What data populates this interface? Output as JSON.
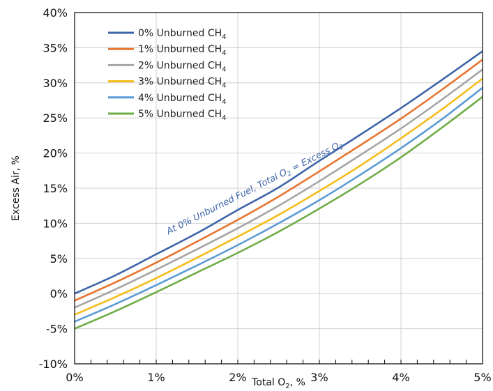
{
  "chart_data": {
    "type": "line",
    "xlabel": {
      "base": "Total O",
      "sub": "2",
      "rest": ", %"
    },
    "ylabel": "Excess Air, %",
    "xlim": [
      0,
      5
    ],
    "ylim": [
      -10,
      40
    ],
    "xticks": [
      0,
      1,
      2,
      3,
      4,
      5
    ],
    "xtick_labels": [
      "0%",
      "1%",
      "2%",
      "3%",
      "4%",
      "5%"
    ],
    "yticks": [
      -10,
      -5,
      0,
      5,
      10,
      15,
      20,
      25,
      30,
      35,
      40
    ],
    "ytick_labels": [
      "-10%",
      "-5%",
      "0%",
      "5%",
      "10%",
      "15%",
      "20%",
      "25%",
      "30%",
      "35%",
      "40%"
    ],
    "grid": true,
    "legend": "top-left",
    "x": [
      0,
      0.5,
      1,
      1.5,
      2,
      2.5,
      3,
      3.5,
      4,
      4.5,
      5
    ],
    "series": [
      {
        "name": {
          "base": "0% Unburned CH",
          "sub": "4"
        },
        "color": "#3d64a8",
        "values": [
          0,
          2.6,
          5.6,
          8.6,
          11.9,
          15.1,
          18.9,
          22.6,
          26.4,
          30.4,
          34.5
        ]
      },
      {
        "name": {
          "base": "1% Unburned CH",
          "sub": "4"
        },
        "color": "#e8742e",
        "values": [
          -1.0,
          1.6,
          4.4,
          7.4,
          10.5,
          13.8,
          17.4,
          21.1,
          24.9,
          29.0,
          33.3
        ]
      },
      {
        "name": {
          "base": "2% Unburned CH",
          "sub": "4"
        },
        "color": "#a5a5a5",
        "values": [
          -2.0,
          0.6,
          3.4,
          6.3,
          9.3,
          12.5,
          16.0,
          19.7,
          23.5,
          27.6,
          31.9
        ]
      },
      {
        "name": {
          "base": "3% Unburned CH",
          "sub": "4"
        },
        "color": "#f5bd1b",
        "values": [
          -3.0,
          -0.5,
          2.2,
          5.1,
          8.1,
          11.2,
          14.6,
          18.2,
          22.1,
          26.2,
          30.6
        ]
      },
      {
        "name": {
          "base": "4% Unburned CH",
          "sub": "4"
        },
        "color": "#5b9bd5",
        "values": [
          -4.0,
          -1.5,
          1.2,
          4.0,
          6.9,
          10.0,
          13.3,
          16.9,
          20.7,
          24.8,
          29.3
        ]
      },
      {
        "name": {
          "base": "5% Unburned CH",
          "sub": "4"
        },
        "color": "#6fad46",
        "values": [
          -5.0,
          -2.5,
          0.2,
          3.0,
          5.8,
          8.8,
          12.1,
          15.6,
          19.4,
          23.6,
          28.0
        ]
      }
    ],
    "annotation": {
      "text": {
        "base": "At 0% Unburned Fuel, Total O",
        "sub": "2",
        "mid": " = Excess O",
        "sub2": "2"
      },
      "color": "#3d64a8",
      "anchor_x": 1.15,
      "anchor_y": 8.4,
      "end_x": 3.6,
      "end_y": 22.8
    }
  }
}
